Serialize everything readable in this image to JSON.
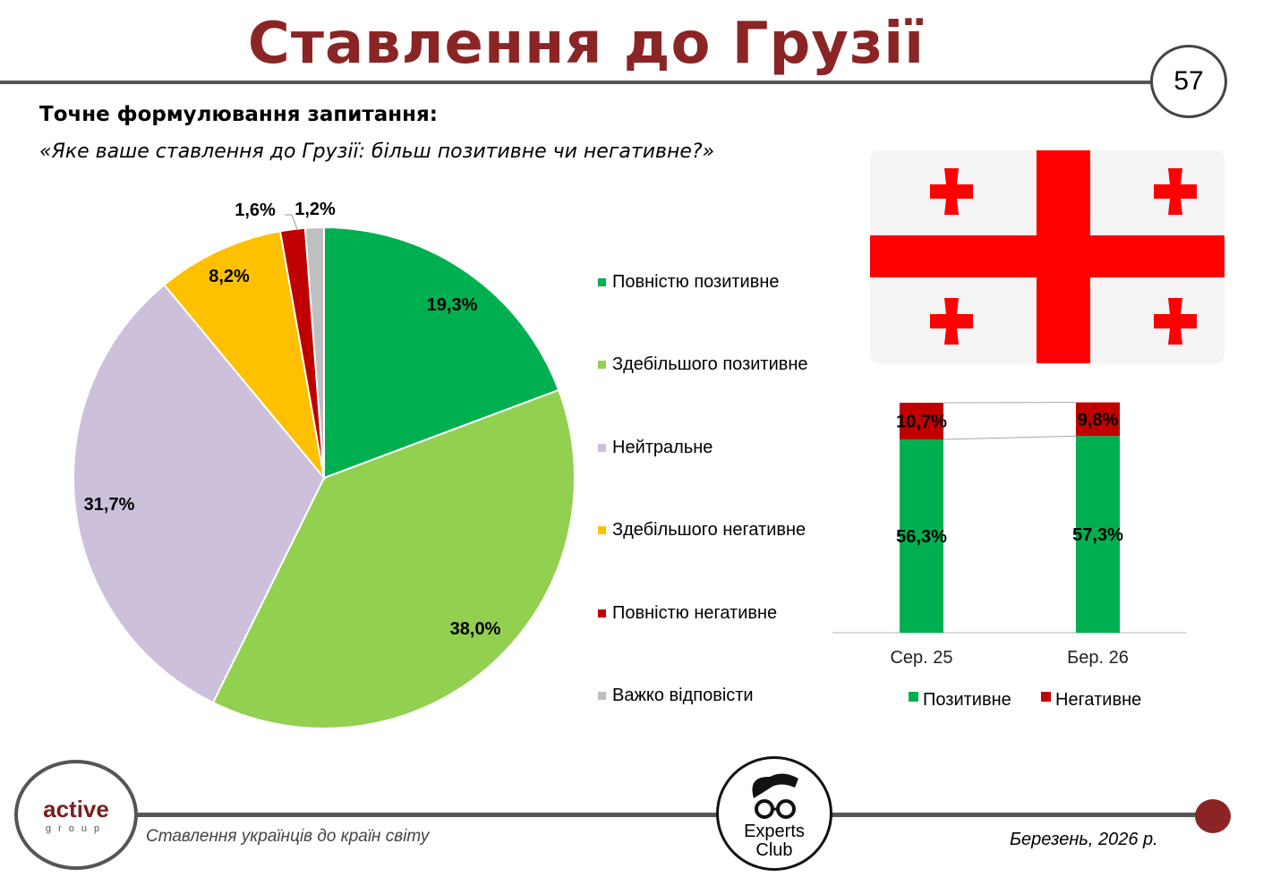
{
  "header": {
    "title": "Ставлення до Грузії",
    "page_number": "57"
  },
  "question": {
    "label": "Точне формулювання запитання:",
    "text": "«Яке ваше ставлення до Грузії: більш позитивне чи негативне?»"
  },
  "chart_data": [
    {
      "type": "pie",
      "title": "",
      "categories": [
        "Повністю позитивне",
        "Здебільшого позитивне",
        "Нейтральне",
        "Здебільшого негативне",
        "Повністю негативне",
        "Важко відповісти"
      ],
      "values": [
        19.3,
        38.0,
        31.7,
        8.2,
        1.6,
        1.2
      ],
      "labels": [
        "19,3%",
        "38,0%",
        "31,7%",
        "8,2%",
        "1,6%",
        "1,2%"
      ],
      "colors": [
        "#00b050",
        "#92d050",
        "#ccc0da",
        "#ffc000",
        "#c00000",
        "#bfbfbf"
      ],
      "legend": "right"
    },
    {
      "type": "bar",
      "stacked": true,
      "categories": [
        "Сер. 25",
        "Бер. 26"
      ],
      "series": [
        {
          "name": "Позитивне",
          "values": [
            56.3,
            57.3
          ],
          "labels": [
            "56,3%",
            "57,3%"
          ],
          "color": "#00b050"
        },
        {
          "name": "Негативне",
          "values": [
            10.7,
            9.8
          ],
          "labels": [
            "10,7%",
            "9,8%"
          ],
          "color": "#c00000"
        }
      ],
      "legend": "bottom"
    }
  ],
  "footer": {
    "left_text": "Ставлення українців до країн світу",
    "right_text": "Березень, 2026 р.",
    "active_logo": "active",
    "active_sub": "group",
    "experts_logo_1": "Experts",
    "experts_logo_2": "Club"
  }
}
